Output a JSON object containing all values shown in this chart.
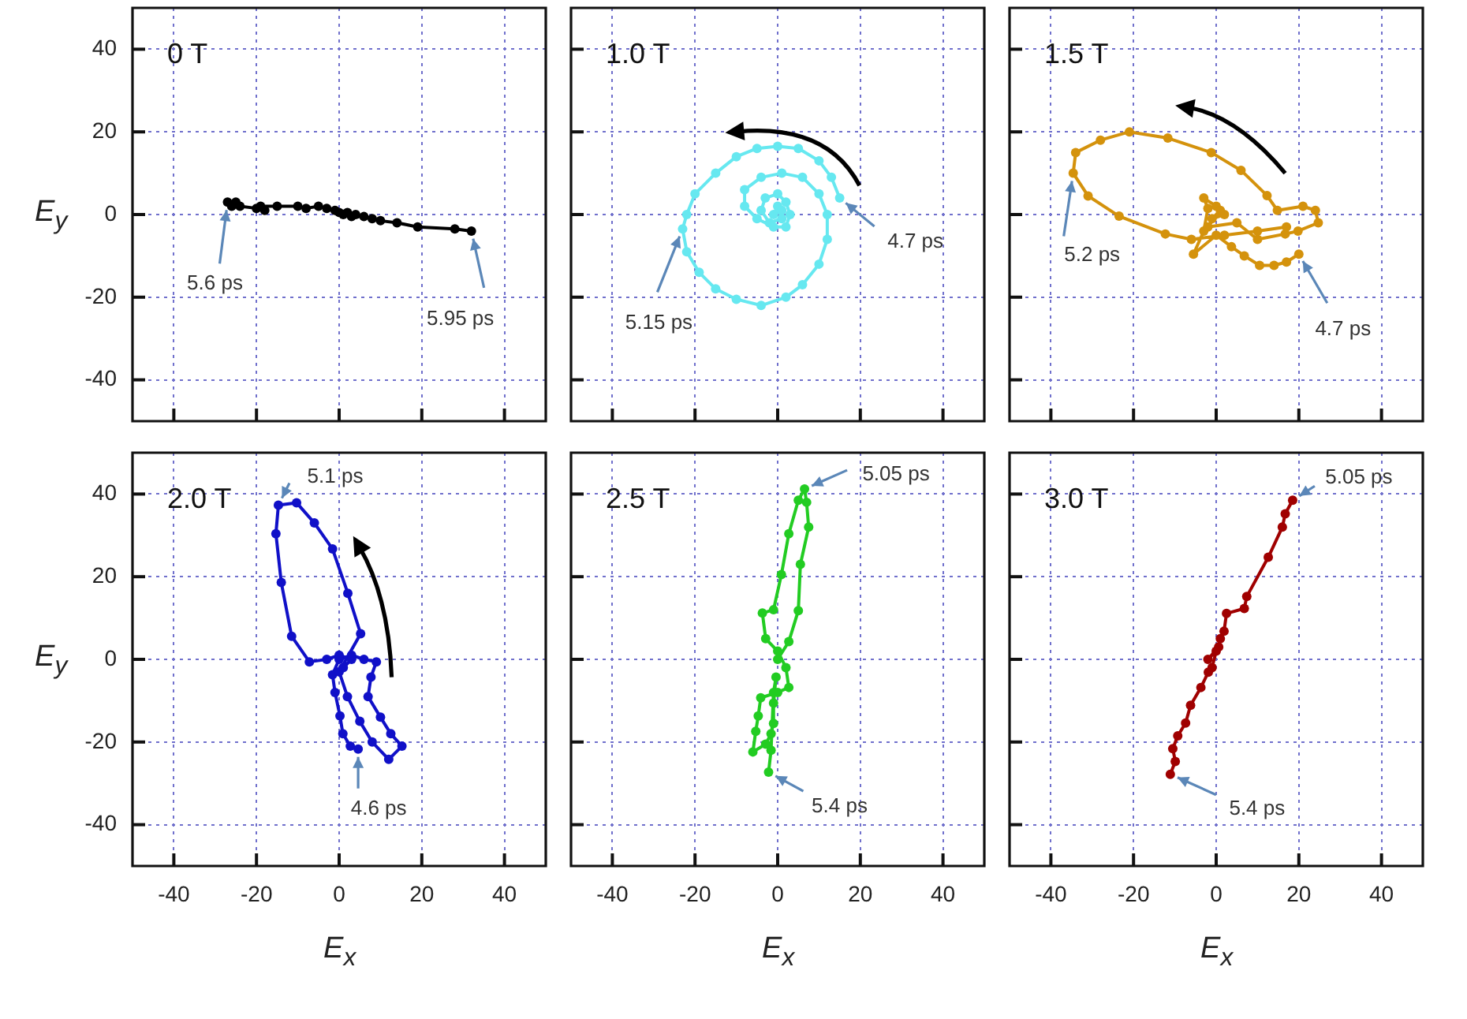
{
  "chart_data": [
    {
      "type": "line",
      "title": "0 T",
      "ylabel": "E$_{y}$",
      "xlim": [
        -50,
        50
      ],
      "ylim": [
        -50,
        50
      ],
      "xticks": [
        -40,
        -20,
        0,
        20,
        40
      ],
      "yticks": [
        -40,
        -20,
        0,
        20,
        40
      ],
      "grid": true,
      "marker": "circle",
      "tick_labels": "y",
      "series": [
        {
          "color": "#000000",
          "x": [
            -27,
            -25,
            -26,
            -24,
            -20,
            -18,
            -19,
            -15,
            -10,
            -8,
            -5,
            -3,
            -1,
            0,
            1,
            2,
            4,
            3,
            6,
            8,
            10,
            14,
            19,
            28,
            32
          ],
          "values": [
            3,
            3,
            2,
            2,
            1.5,
            1,
            2,
            2,
            2,
            1.5,
            2,
            1.5,
            1,
            0.5,
            0,
            0.5,
            0,
            -0.5,
            -0.5,
            -1,
            -1.5,
            -2,
            -3,
            -3.5,
            -4
          ]
        }
      ],
      "annotations": [
        {
          "text": "5.6 ps",
          "x": -27,
          "y": 3
        },
        {
          "text": "5.95 ps",
          "x": 32,
          "y": -4
        }
      ]
    },
    {
      "type": "line",
      "title": "1.0 T",
      "xlim": [
        -50,
        50
      ],
      "ylim": [
        -50,
        50
      ],
      "xticks": [
        -40,
        -20,
        0,
        20,
        40
      ],
      "yticks": [
        -40,
        -20,
        0,
        20,
        40
      ],
      "grid": true,
      "marker": "circle",
      "tick_labels": false,
      "series": [
        {
          "color": "#66e8f0",
          "x": [
            15,
            13,
            10,
            5,
            0,
            -5,
            -10,
            -15,
            -20,
            -22,
            -23,
            -22,
            -19,
            -15,
            -10,
            -4,
            2,
            6,
            10,
            12,
            12,
            10,
            6,
            1,
            -4,
            -8,
            -8,
            -5,
            -1,
            2,
            3,
            2,
            0,
            -3,
            -4,
            -2,
            1,
            0,
            -1,
            1
          ],
          "values": [
            4,
            9,
            13,
            16,
            16.5,
            16,
            14,
            10,
            5,
            0,
            -3.5,
            -9,
            -14,
            -18,
            -20.5,
            -22,
            -20,
            -17,
            -12,
            -6,
            0,
            5,
            9,
            10,
            9,
            6,
            2,
            -1,
            -3,
            -3,
            0,
            3,
            5,
            4,
            1,
            -2,
            -1,
            2,
            0,
            1
          ]
        }
      ],
      "annotations": [
        {
          "text": "4.7 ps",
          "x": 15,
          "y": 4
        },
        {
          "text": "5.15 ps",
          "x": -23,
          "y": -3.5
        }
      ]
    },
    {
      "type": "line",
      "title": "1.5 T",
      "xlim": [
        -50,
        50
      ],
      "ylim": [
        -50,
        50
      ],
      "xticks": [
        -40,
        -20,
        0,
        20,
        40
      ],
      "yticks": [
        -40,
        -20,
        0,
        20,
        40
      ],
      "grid": true,
      "marker": "circle",
      "tick_labels": false,
      "series": [
        {
          "color": "#d4920c",
          "x": [
            20,
            17,
            14,
            10.5,
            6.8,
            3.7,
            0,
            -5.5,
            -3,
            -2,
            -3,
            0,
            2,
            -1,
            1,
            -2,
            5,
            10,
            16.7,
            19.8,
            24.7,
            24,
            21,
            14.8,
            12.3,
            6,
            -1.2,
            -11.7,
            -21,
            -28,
            -34,
            -34.6,
            -31,
            -23.5,
            -12.3,
            -6,
            2,
            10,
            17
          ],
          "values": [
            -9.6,
            -11.5,
            -12.3,
            -12.3,
            -10,
            -7.8,
            -5,
            -9.6,
            -4,
            1.5,
            4,
            2,
            0,
            -1,
            1,
            -3,
            -2,
            -6,
            -4.7,
            -4,
            -2,
            1,
            2,
            1,
            4.6,
            10.7,
            15,
            18.5,
            20,
            18,
            15,
            10,
            4.5,
            -0.4,
            -4.7,
            -6,
            -5,
            -4,
            -3
          ]
        }
      ],
      "annotations": [
        {
          "text": "5.2 ps",
          "x": -34.6,
          "y": 10
        },
        {
          "text": "4.7 ps",
          "x": 20,
          "y": -9.6
        }
      ]
    },
    {
      "type": "line",
      "title": "2.0 T",
      "xlabel": "E$_{x}$",
      "ylabel": "E$_{y}$",
      "xlim": [
        -50,
        50
      ],
      "ylim": [
        -50,
        50
      ],
      "xticks": [
        -40,
        -20,
        0,
        20,
        40
      ],
      "yticks": [
        -40,
        -20,
        0,
        20,
        40
      ],
      "grid": true,
      "marker": "circle",
      "series": [
        {
          "color": "#1010c8",
          "x": [
            4.6,
            2.7,
            0.9,
            0.2,
            -1,
            -1.6,
            0,
            3,
            6,
            9,
            7.7,
            7,
            10,
            12.5,
            15.2,
            12,
            8,
            5,
            2,
            0,
            5.2,
            2.1,
            -1.6,
            -6,
            -10.3,
            -14.7,
            -15.3,
            -14,
            -11.5,
            -7.2,
            -3,
            0,
            3,
            1
          ],
          "values": [
            -21.7,
            -21,
            -18,
            -13.7,
            -8,
            -3.7,
            0,
            1,
            0,
            -0.6,
            -4.3,
            -9,
            -14,
            -18,
            -21,
            -24.2,
            -20,
            -15,
            -9,
            -3,
            6.2,
            16,
            26.7,
            33,
            37.9,
            37.3,
            30.4,
            18.6,
            5.6,
            -0.6,
            0,
            1,
            0,
            -2
          ]
        }
      ],
      "annotations": [
        {
          "text": "5.1 ps",
          "x": -14.7,
          "y": 37.3
        },
        {
          "text": "4.6 ps",
          "x": 4.6,
          "y": -21.7
        }
      ]
    },
    {
      "type": "line",
      "title": "2.5 T",
      "xlabel": "E$_{x}$",
      "xlim": [
        -50,
        50
      ],
      "ylim": [
        -50,
        50
      ],
      "xticks": [
        -40,
        -20,
        0,
        20,
        40
      ],
      "yticks": [
        -40,
        -20,
        0,
        20,
        40
      ],
      "grid": true,
      "marker": "circle",
      "tick_labels": "x",
      "series": [
        {
          "color": "#22cc22",
          "x": [
            0,
            2.7,
            5,
            5.5,
            7.5,
            7,
            6.5,
            5,
            2.7,
            0.9,
            -1,
            -3.7,
            -2.9,
            0,
            2,
            2.7,
            0,
            -4.1,
            -4.7,
            -5.3,
            -6,
            -2.9,
            -1.6,
            -1,
            -1,
            -0.4,
            -1,
            -1.6,
            -2.2
          ],
          "values": [
            0,
            4.3,
            11.8,
            23,
            32,
            38,
            41.2,
            38.5,
            30.4,
            20.5,
            12,
            11.2,
            5,
            2,
            -2,
            -6.8,
            -8,
            -9.3,
            -13.7,
            -17.4,
            -22.4,
            -20.5,
            -18,
            -15.5,
            -10.6,
            -4.3,
            -8,
            -22,
            -27.3
          ]
        }
      ],
      "annotations": [
        {
          "text": "5.05 ps",
          "x": 6.5,
          "y": 41.2
        },
        {
          "text": "5.4 ps",
          "x": -2.2,
          "y": -27.3
        }
      ]
    },
    {
      "type": "line",
      "title": "3.0 T",
      "xlabel": "E$_{x}$",
      "xlim": [
        -50,
        50
      ],
      "ylim": [
        -50,
        50
      ],
      "xticks": [
        -40,
        -20,
        0,
        20,
        40
      ],
      "yticks": [
        -40,
        -20,
        0,
        20,
        40
      ],
      "grid": true,
      "marker": "circle",
      "tick_labels": "x",
      "series": [
        {
          "color": "#a00000",
          "x": [
            18.5,
            16.7,
            16,
            12.6,
            7.4,
            6.8,
            2.5,
            1.9,
            1,
            0.6,
            -2,
            0,
            -1,
            -1.9,
            -3.7,
            -6.2,
            -7.4,
            -9.3,
            -10.5,
            -9.9,
            -11.1
          ],
          "values": [
            38.5,
            35.2,
            32,
            24.7,
            15.2,
            12.3,
            11.1,
            6.8,
            5,
            3,
            0,
            2,
            -2,
            -3.1,
            -6.8,
            -11.1,
            -15.4,
            -18.5,
            -21.6,
            -24.7,
            -27.8
          ]
        }
      ],
      "annotations": [
        {
          "text": "5.05 ps",
          "x": 18.5,
          "y": 38.5
        },
        {
          "text": "5.4 ps",
          "x": -11.1,
          "y": -27.8
        }
      ]
    }
  ]
}
